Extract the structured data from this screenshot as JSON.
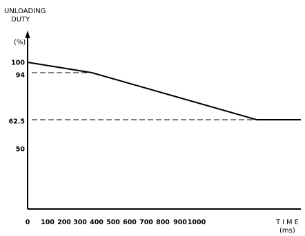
{
  "chart_data": {
    "type": "line",
    "ylabel_line1": "UNLOADING",
    "ylabel_line2": "DUTY",
    "yunit": "(%)",
    "xlabel": "TIME",
    "xunit": "(ms)",
    "x_ticks": [
      0,
      100,
      200,
      300,
      400,
      500,
      600,
      700,
      800,
      900,
      1000
    ],
    "x_tick_labels": [
      "0",
      "100",
      "200",
      "300",
      "400",
      "500",
      "600",
      "700",
      "800",
      "900",
      "1000"
    ],
    "y_ticks": [
      100,
      94,
      62.5,
      50
    ],
    "y_tick_labels": [
      "100",
      "94",
      "62.5",
      "50"
    ],
    "xlim": [
      0,
      1100
    ],
    "ylim": [
      0,
      105
    ],
    "series": [
      {
        "x": [
          0,
          300,
          1000,
          1100
        ],
        "y": [
          100,
          94,
          62.5,
          62.5
        ]
      }
    ],
    "dashed_guides": [
      {
        "x_end": 300,
        "y": 94
      },
      {
        "x_end": 1000,
        "y": 62.5
      }
    ],
    "grid": false,
    "legend": "none",
    "colors": {
      "ink": "#000000",
      "background": "#ffffff"
    }
  }
}
